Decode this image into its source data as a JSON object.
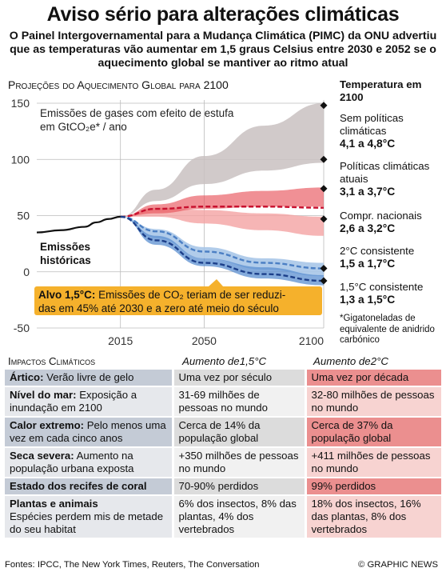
{
  "header": {
    "title": "Aviso sério para alterações climáticas",
    "subtitle": "O Painel Intergovernamental para a Mudança Climática (PIMC) da ONU advertiu que as temperaturas vão aumentar em 1,5 graus Celsius entre 2030 e 2052 se o aquecimento global se mantiver ao ritmo atual"
  },
  "chart_data": {
    "type": "area",
    "title": "Projeções do Aquecimento Global para 2100",
    "ylabel": "Emissões de gases com efeito de estufa em GtCO2e* / ano",
    "ylim": [
      -50,
      150
    ],
    "yticks": [
      "150",
      "100",
      "50",
      "0",
      "-50"
    ],
    "xlim": [
      1980,
      2100
    ],
    "xticks": [
      "2015",
      "2050",
      "2100"
    ],
    "historical_label": "Emissões históricas",
    "historical": {
      "x": [
        1980,
        1990,
        2000,
        2005,
        2010,
        2015
      ],
      "y": [
        35,
        37,
        40,
        44,
        47,
        49
      ]
    },
    "series": [
      {
        "name": "Sem políticas climáticas",
        "color": "#9b8f8f",
        "x": [
          2015,
          2030,
          2050,
          2075,
          2100
        ],
        "upper": [
          49,
          73,
          103,
          130,
          150
        ],
        "lower": [
          49,
          63,
          78,
          90,
          97
        ]
      },
      {
        "name": "Políticas climáticas atuais",
        "color": "#e0414d",
        "x": [
          2015,
          2030,
          2050,
          2075,
          2100
        ],
        "upper": [
          49,
          60,
          68,
          72,
          75
        ],
        "lower": [
          49,
          52,
          56,
          58,
          58
        ],
        "mid": [
          49,
          56,
          58,
          58,
          57
        ]
      },
      {
        "name": "Compr. nacionais",
        "color": "#f08a8e",
        "x": [
          2015,
          2030,
          2050,
          2075,
          2100
        ],
        "upper": [
          49,
          57,
          55,
          52,
          49
        ],
        "lower": [
          49,
          49,
          43,
          37,
          32
        ]
      },
      {
        "name": "2°C consistente",
        "color": "#4f86c6",
        "x": [
          2015,
          2030,
          2050,
          2075,
          2100
        ],
        "upper": [
          49,
          38,
          22,
          12,
          8
        ],
        "lower": [
          49,
          30,
          12,
          2,
          -4
        ],
        "mid": [
          49,
          36,
          18,
          8,
          3
        ]
      },
      {
        "name": "1,5°C consistente",
        "color": "#1f4fa3",
        "x": [
          2015,
          2030,
          2050,
          2075,
          2100
        ],
        "upper": [
          49,
          32,
          12,
          4,
          -3
        ],
        "lower": [
          49,
          24,
          5,
          -6,
          -12
        ],
        "mid": [
          49,
          28,
          8,
          -2,
          -8
        ]
      }
    ],
    "alvo": {
      "label": "Alvo 1,5°C:",
      "text": "Emissões de CO₂ teriam de ser reduzidas em 45% até 2030 e a zero até meio do século"
    }
  },
  "legend": {
    "heading": "Temperatura em 2100",
    "items": [
      {
        "name": "Sem políticas climáticas",
        "range": "4,1 a 4,8°C"
      },
      {
        "name": "Políticas climáticas atuais",
        "range": "3,1 a 3,7°C"
      },
      {
        "name": "Compr. nacionais",
        "range": "2,6 a 3,2°C"
      },
      {
        "name": "2°C consistente",
        "range": "1,5 a 1,7°C"
      },
      {
        "name": "1,5°C consistente",
        "range": "1,3 a 1,5°C"
      }
    ],
    "footnote": "*Gigatoneladas de equivalente de anidrido carbónico"
  },
  "impacts": {
    "heading": "Impactos Climáticos",
    "col_15": "Aumento de1,5°C",
    "col_2": "Aumento de2°C",
    "rows": [
      {
        "label": "Ártico:",
        "desc": "Verão livre de gelo",
        "v15": "Uma vez por século",
        "v2": "Uma vez por década",
        "shade": "#eb8f8f"
      },
      {
        "label": "Nível do mar:",
        "desc": "Exposição a inundação em 2100",
        "v15": "31-69 milhões de pessoas no mundo",
        "v2": "32-80 milhões de pessoas no mundo",
        "shade": "#f7d3d1"
      },
      {
        "label": "Calor extremo:",
        "desc": "Pelo menos uma vez em cada cinco anos",
        "v15": "Cerca de 14% da população global",
        "v2": "Cerca de 37% da população global",
        "shade": "#eb8f8f"
      },
      {
        "label": "Seca severa:",
        "desc": "Aumento na população urbana exposta",
        "v15": "+350 milhões de pessoas no mundo",
        "v2": "+411 milhões de pessoas no mundo",
        "shade": "#f7d3d1"
      },
      {
        "label": "Estado dos recifes de coral",
        "desc": "",
        "v15": "70-90% perdidos",
        "v2": "99% perdidos",
        "shade": "#eb8f8f"
      },
      {
        "label": "Plantas e animais",
        "desc": "Espécies perdem mis de metade do seu habitat",
        "v15": "6% dos insectos, 8% das plantas, 4% dos vertebrados",
        "v2": "18% dos insectos, 16% das plantas, 8% dos vertebrados",
        "shade": "#f7d3d1"
      }
    ]
  },
  "footer": {
    "sources": "Fontes: IPCC, The New York Times, Reuters, The Conversation",
    "credit": "© GRAPHIC NEWS"
  }
}
